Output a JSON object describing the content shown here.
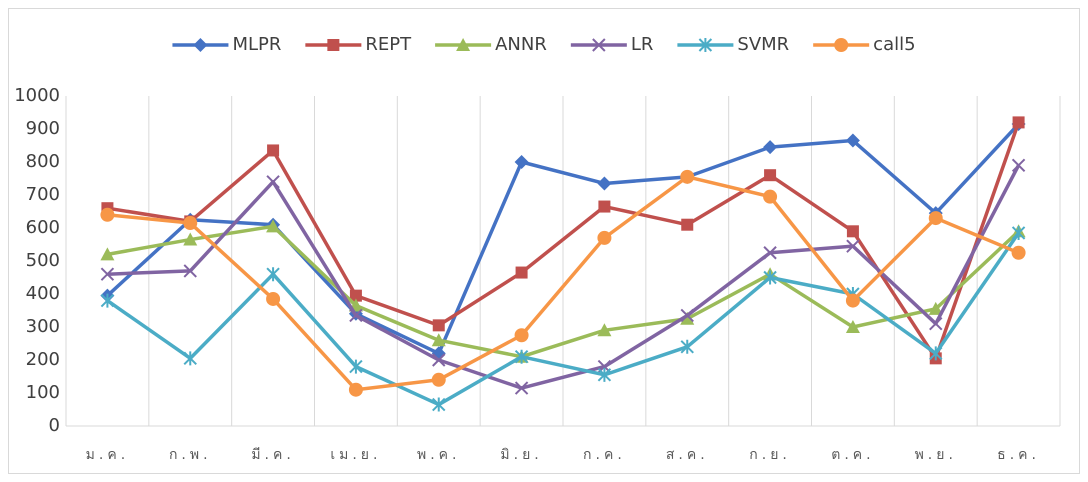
{
  "chart_data": {
    "type": "line",
    "categories": [
      "ม.ค.",
      "ก.พ.",
      "มี.ค.",
      "เม.ย.",
      "พ.ค.",
      "มิ.ย.",
      "ก.ค.",
      "ส.ค.",
      "ก.ย.",
      "ต.ค.",
      "พ.ย.",
      "ธ.ค."
    ],
    "series": [
      {
        "name": "MLPR",
        "color": "#4472c4",
        "marker": "diamond",
        "values": [
          395,
          625,
          610,
          340,
          220,
          800,
          735,
          755,
          845,
          865,
          645,
          915
        ]
      },
      {
        "name": "REPT",
        "color": "#c0504d",
        "marker": "square",
        "values": [
          660,
          620,
          835,
          395,
          305,
          465,
          665,
          610,
          760,
          590,
          205,
          920
        ]
      },
      {
        "name": "ANNR",
        "color": "#9bbb59",
        "marker": "triangle",
        "values": [
          520,
          565,
          605,
          365,
          260,
          210,
          290,
          325,
          460,
          300,
          355,
          590
        ]
      },
      {
        "name": "LR",
        "color": "#8064a2",
        "marker": "x",
        "values": [
          460,
          470,
          740,
          335,
          200,
          115,
          180,
          335,
          525,
          545,
          310,
          790
        ]
      },
      {
        "name": "SVMR",
        "color": "#4bacc6",
        "marker": "asterisk",
        "values": [
          380,
          205,
          460,
          180,
          65,
          210,
          155,
          240,
          450,
          400,
          220,
          585
        ]
      },
      {
        "name": "call5",
        "color": "#f79646",
        "marker": "circle",
        "values": [
          640,
          615,
          385,
          110,
          140,
          275,
          570,
          755,
          695,
          380,
          630,
          525
        ]
      }
    ],
    "ylim": [
      0,
      1000
    ],
    "yticks": [
      0,
      100,
      200,
      300,
      400,
      500,
      600,
      700,
      800,
      900,
      1000
    ],
    "legend": "top",
    "grid": "vertical"
  }
}
